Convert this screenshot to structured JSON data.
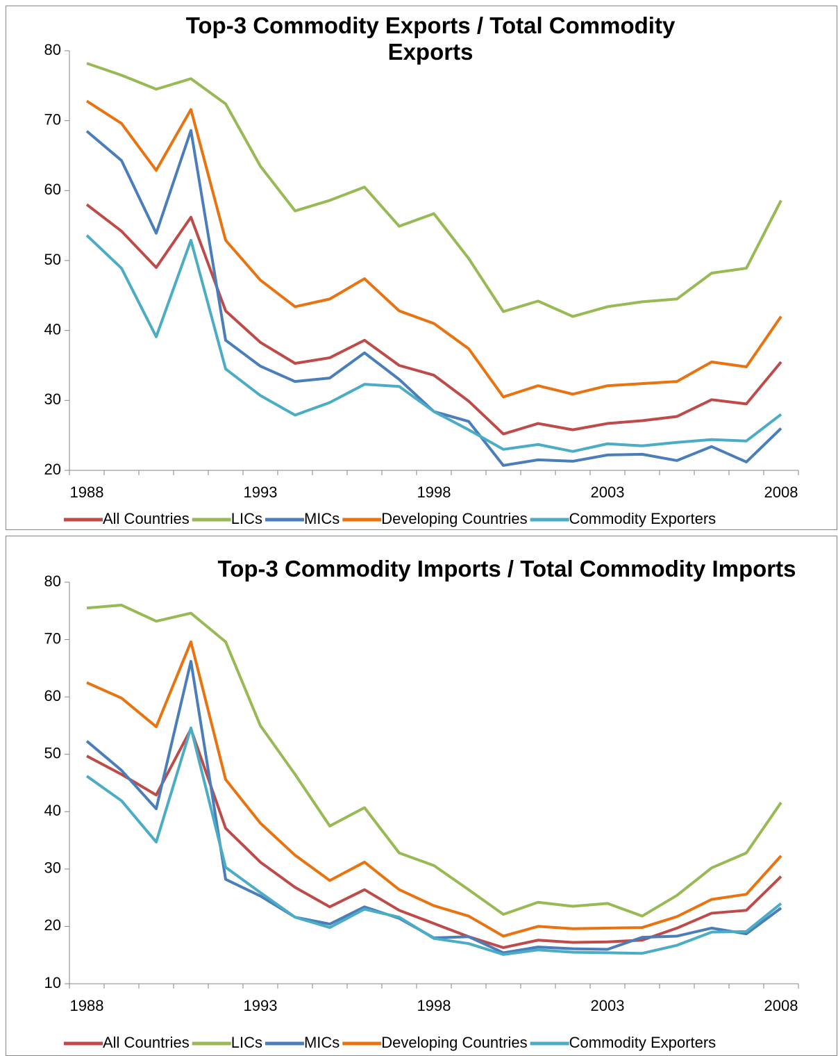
{
  "chart_data": [
    {
      "type": "line",
      "title": "Top-3 Commodity Exports / Total Commodity Exports",
      "categories": [
        "1988",
        null,
        null,
        null,
        null,
        "1993",
        null,
        null,
        null,
        null,
        "1998",
        null,
        null,
        null,
        null,
        "2003",
        null,
        null,
        null,
        null,
        "2008"
      ],
      "ylim": [
        20,
        80
      ],
      "yticks": [
        20,
        30,
        40,
        50,
        60,
        70,
        80
      ],
      "series": [
        {
          "name": "All Countries",
          "color": "#be4b48",
          "values": [
            58,
            54.2,
            49,
            56.2,
            42.8,
            38.3,
            35.3,
            36.1,
            38.6,
            35,
            33.6,
            29.9,
            25.2,
            26.7,
            25.8,
            26.7,
            27.1,
            27.7,
            30.1,
            29.5,
            35.5
          ]
        },
        {
          "name": "LICs",
          "color": "#98b954",
          "values": [
            78.2,
            76.5,
            74.5,
            76,
            72.4,
            63.5,
            57.1,
            58.6,
            60.5,
            54.9,
            56.7,
            50.3,
            42.7,
            44.2,
            42,
            43.4,
            44.1,
            44.5,
            48.2,
            48.9,
            58.6
          ]
        },
        {
          "name": "MICs",
          "color": "#4a7ebb",
          "values": [
            68.5,
            64.3,
            53.9,
            68.6,
            38.6,
            34.9,
            32.7,
            33.2,
            36.8,
            33,
            28.4,
            27,
            20.7,
            21.5,
            21.3,
            22.2,
            22.3,
            21.4,
            23.4,
            21.2,
            26
          ]
        },
        {
          "name": "Developing Countries",
          "color": "#e8730f",
          "values": [
            72.8,
            69.6,
            62.9,
            71.6,
            52.9,
            47.2,
            43.4,
            44.5,
            47.4,
            42.8,
            41,
            37.4,
            30.5,
            32.1,
            30.9,
            32.1,
            32.4,
            32.7,
            35.5,
            34.8,
            42
          ]
        },
        {
          "name": "Commodity Exporters",
          "color": "#4bacc6",
          "values": [
            53.6,
            48.9,
            39.1,
            52.9,
            34.5,
            30.7,
            27.9,
            29.7,
            32.3,
            32,
            28.4,
            25.8,
            23,
            23.7,
            22.7,
            23.8,
            23.5,
            24,
            24.4,
            24.2,
            28
          ]
        }
      ]
    },
    {
      "type": "line",
      "title": "Top-3 Commodity Imports / Total Commodity Imports",
      "categories": [
        "1988",
        null,
        null,
        null,
        null,
        "1993",
        null,
        null,
        null,
        null,
        "1998",
        null,
        null,
        null,
        null,
        "2003",
        null,
        null,
        null,
        null,
        "2008"
      ],
      "ylim": [
        10,
        80
      ],
      "yticks": [
        10,
        20,
        30,
        40,
        50,
        60,
        70,
        80
      ],
      "series": [
        {
          "name": "All Countries",
          "color": "#be4b48",
          "values": [
            49.7,
            46.5,
            42.9,
            54.4,
            37.1,
            31.2,
            26.8,
            23.4,
            26.4,
            22.8,
            20.5,
            18.2,
            16.3,
            17.6,
            17.2,
            17.3,
            17.6,
            19.7,
            22.3,
            22.8,
            28.7
          ]
        },
        {
          "name": "LICs",
          "color": "#98b954",
          "values": [
            75.5,
            76,
            73.2,
            74.6,
            69.6,
            55,
            46.5,
            37.5,
            40.7,
            32.8,
            30.6,
            26.4,
            22.1,
            24.2,
            23.5,
            24,
            21.8,
            25.4,
            30.2,
            32.8,
            41.6
          ]
        },
        {
          "name": "MICs",
          "color": "#4a7ebb",
          "values": [
            52.3,
            47.2,
            40.5,
            66.2,
            28.2,
            25.3,
            21.6,
            20.4,
            23.4,
            21.4,
            18,
            18.2,
            15.4,
            16.4,
            16.1,
            16,
            18.1,
            18.3,
            19.7,
            18.7,
            23.2
          ]
        },
        {
          "name": "Developing Countries",
          "color": "#e8730f",
          "values": [
            62.5,
            59.8,
            54.8,
            69.6,
            45.6,
            38,
            32.4,
            28,
            31.2,
            26.4,
            23.6,
            21.8,
            18.3,
            20,
            19.6,
            19.7,
            19.8,
            21.7,
            24.7,
            25.6,
            32.3
          ]
        },
        {
          "name": "Commodity Exporters",
          "color": "#4bacc6",
          "values": [
            46.2,
            41.9,
            34.7,
            54.6,
            30.3,
            25.9,
            21.6,
            19.8,
            23,
            21.6,
            17.9,
            17,
            15.1,
            15.9,
            15.5,
            15.4,
            15.3,
            16.7,
            19,
            19.1,
            24
          ]
        }
      ]
    }
  ]
}
